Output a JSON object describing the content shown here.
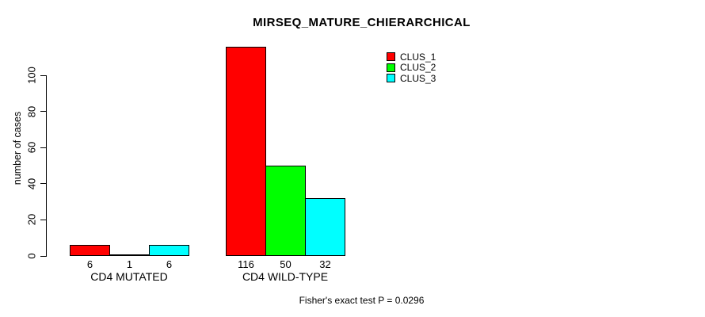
{
  "title": "MIRSEQ_MATURE_CHIERARCHICAL",
  "chart_data": {
    "type": "bar",
    "grouped": true,
    "title": "MIRSEQ_MATURE_CHIERARCHICAL",
    "xlabel": "",
    "ylabel": "number of cases",
    "categories": [
      "CD4 MUTATED",
      "CD4 WILD-TYPE"
    ],
    "series": [
      {
        "name": "CLUS_1",
        "color": "#FF0000",
        "values": [
          6,
          116
        ]
      },
      {
        "name": "CLUS_2",
        "color": "#00FF00",
        "values": [
          1,
          50
        ]
      },
      {
        "name": "CLUS_3",
        "color": "#00FFFF",
        "values": [
          6,
          32
        ]
      }
    ],
    "bar_value_labels": [
      [
        "6",
        "1",
        "6"
      ],
      [
        "116",
        "50",
        "32"
      ]
    ],
    "yticks": [
      0,
      20,
      40,
      60,
      80,
      100
    ],
    "ylim": [
      0,
      119
    ],
    "grid": false,
    "legend_position": "top-right"
  },
  "annotations": {
    "footer": "Fisher's exact test P = 0.0296"
  },
  "colors": {
    "background": "#FFFFFF",
    "text": "#000000",
    "axis": "#000000",
    "bar_border": "#000000"
  }
}
